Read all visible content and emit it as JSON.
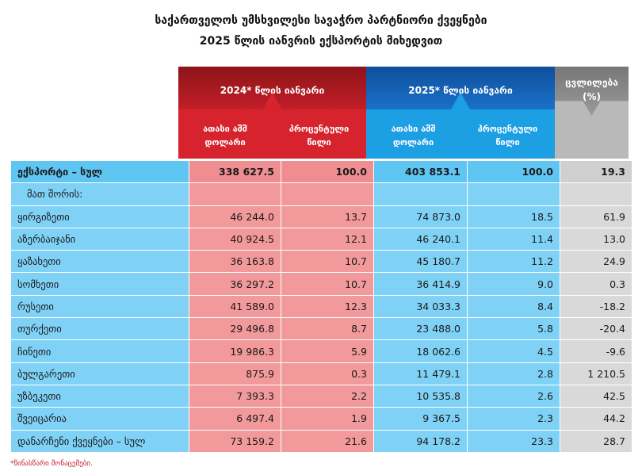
{
  "title_line1": "საქართველოს უმსხვილესი სავაჭრო პარტნიორი ქვეყნები",
  "title_line2": "2025 წლის იანვრის ექსპორტის მიხედვით",
  "headers": {
    "period_2024": "2024* წლის იანვარი",
    "period_2025": "2025* წლის იანვარი",
    "change": "ცვლილება",
    "change_unit": "(%)",
    "thousand_usd_l1": "ათასი აშშ",
    "thousand_usd_l2": "დოლარი",
    "percent_share_l1": "პროცენტული",
    "percent_share_l2": "წილი"
  },
  "rows": [
    {
      "name": "ექსპორტი – სულ",
      "v2024": "338 627.5",
      "s2024": "100.0",
      "v2025": "403 853.1",
      "s2025": "100.0",
      "chg": "19.3"
    },
    {
      "name": "მათ შორის:",
      "v2024": "",
      "s2024": "",
      "v2025": "",
      "s2025": "",
      "chg": ""
    },
    {
      "name": "ყირგიზეთი",
      "v2024": "46 244.0",
      "s2024": "13.7",
      "v2025": "74 873.0",
      "s2025": "18.5",
      "chg": "61.9"
    },
    {
      "name": "აზერბაიჯანი",
      "v2024": "40 924.5",
      "s2024": "12.1",
      "v2025": "46 240.1",
      "s2025": "11.4",
      "chg": "13.0"
    },
    {
      "name": "ყაზახეთი",
      "v2024": "36 163.8",
      "s2024": "10.7",
      "v2025": "45 180.7",
      "s2025": "11.2",
      "chg": "24.9"
    },
    {
      "name": "სომხეთი",
      "v2024": "36 297.2",
      "s2024": "10.7",
      "v2025": "36 414.9",
      "s2025": "9.0",
      "chg": "0.3"
    },
    {
      "name": "რუსეთი",
      "v2024": "41 589.0",
      "s2024": "12.3",
      "v2025": "34 033.3",
      "s2025": "8.4",
      "chg": "-18.2"
    },
    {
      "name": "თურქეთი",
      "v2024": "29 496.8",
      "s2024": "8.7",
      "v2025": "23 488.0",
      "s2025": "5.8",
      "chg": "-20.4"
    },
    {
      "name": "ჩინეთი",
      "v2024": "19 986.3",
      "s2024": "5.9",
      "v2025": "18 062.6",
      "s2025": "4.5",
      "chg": "-9.6"
    },
    {
      "name": "ბულგარეთი",
      "v2024": "875.9",
      "s2024": "0.3",
      "v2025": "11 479.1",
      "s2025": "2.8",
      "chg": "1 210.5"
    },
    {
      "name": "უზბეკეთი",
      "v2024": "7 393.3",
      "s2024": "2.2",
      "v2025": "10 535.8",
      "s2025": "2.6",
      "chg": "42.5"
    },
    {
      "name": "შვეიცარია",
      "v2024": "6 497.4",
      "s2024": "1.9",
      "v2025": "9 367.5",
      "s2025": "2.3",
      "chg": "44.2"
    },
    {
      "name": "დანარჩენი ქვეყნები – სულ",
      "v2024": "73 159.2",
      "s2024": "21.6",
      "v2025": "94 178.2",
      "s2025": "23.3",
      "chg": "28.7"
    }
  ],
  "footnote": "*წინასწარი მონაცემები."
}
